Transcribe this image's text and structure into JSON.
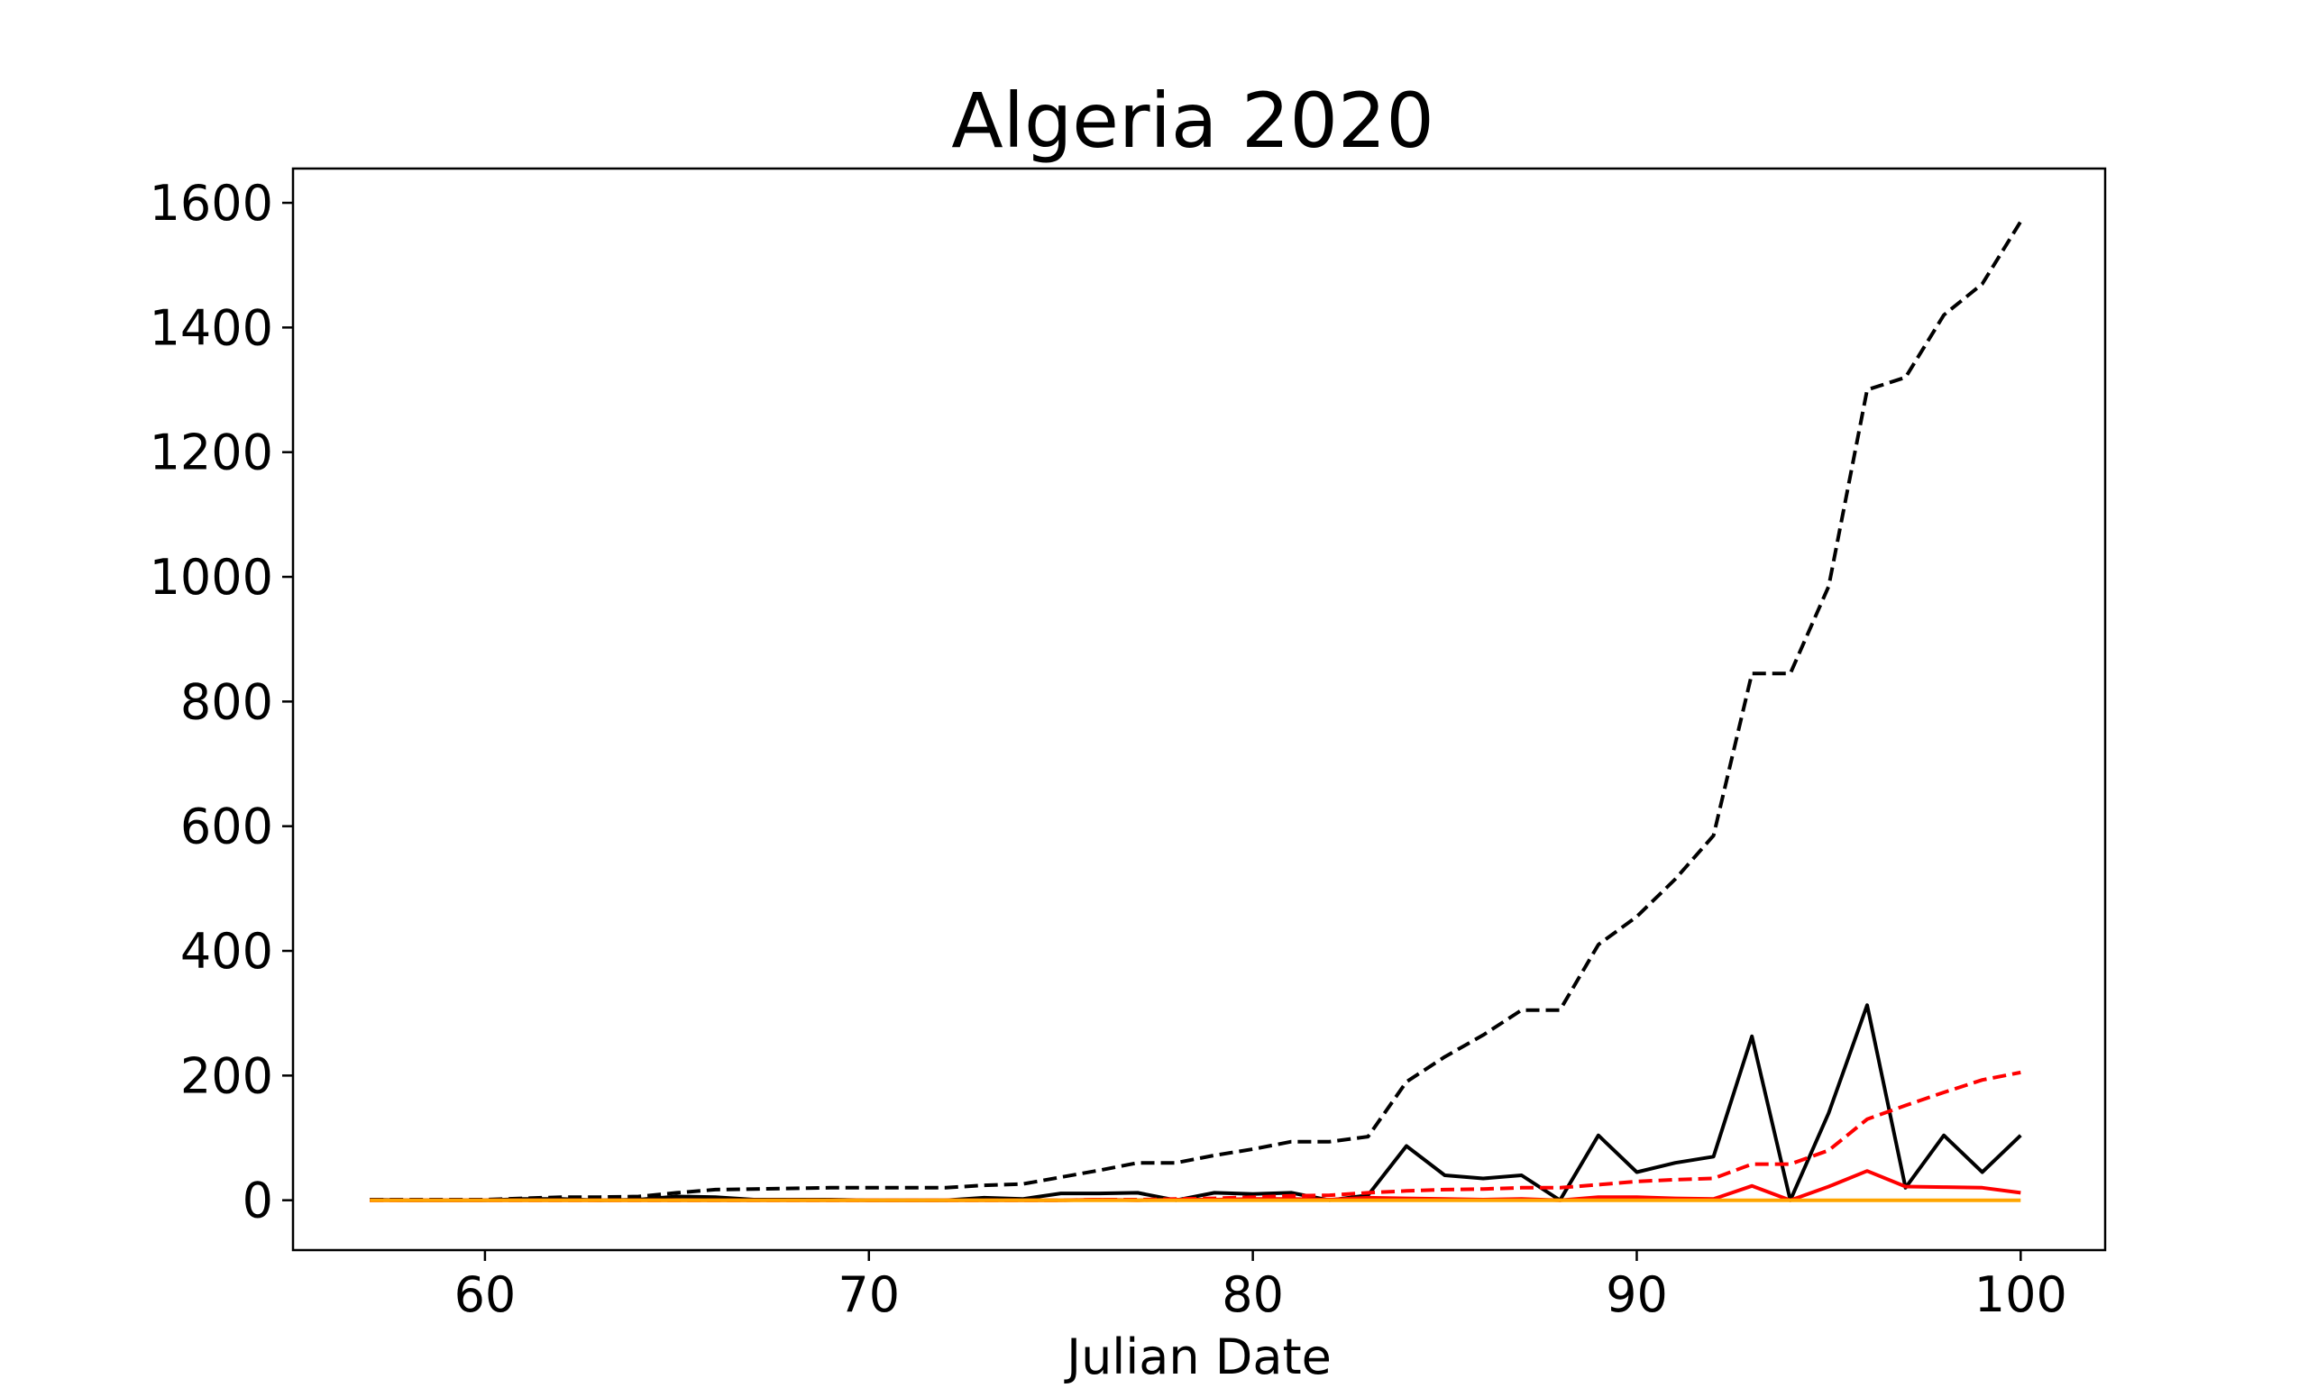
{
  "chart_data": {
    "type": "line",
    "title": "Algeria 2020",
    "xlabel": "Julian Date",
    "ylabel": "",
    "xlim": [
      55,
      102.2
    ],
    "ylim": [
      -80,
      1655
    ],
    "xticks": [
      60,
      70,
      80,
      90,
      100
    ],
    "yticks": [
      0,
      200,
      400,
      600,
      800,
      1000,
      1200,
      1400,
      1600
    ],
    "x": [
      57,
      58,
      59,
      60,
      61,
      62,
      63,
      64,
      65,
      66,
      67,
      68,
      69,
      70,
      71,
      72,
      73,
      74,
      75,
      76,
      77,
      78,
      79,
      80,
      81,
      82,
      83,
      84,
      85,
      86,
      87,
      88,
      89,
      90,
      91,
      92,
      93,
      94,
      95,
      96,
      97,
      98,
      99,
      100
    ],
    "series": [
      {
        "color": "#000000",
        "dash": "dashed",
        "values": [
          1,
          1,
          1,
          1,
          3,
          5,
          5,
          6,
          12,
          17,
          18,
          19,
          20,
          20,
          20,
          20,
          24,
          26,
          37,
          48,
          60,
          60,
          72,
          82,
          94,
          94,
          102,
          190,
          230,
          265,
          305,
          305,
          410,
          455,
          515,
          585,
          845,
          845,
          985,
          1300,
          1320,
          1420,
          1470,
          1570
        ]
      },
      {
        "color": "#000000",
        "dash": "solid",
        "values": [
          1,
          0,
          0,
          0,
          2,
          2,
          0,
          1,
          6,
          5,
          1,
          1,
          1,
          0,
          0,
          0,
          4,
          2,
          11,
          11,
          12,
          0,
          12,
          10,
          12,
          0,
          8,
          87,
          40,
          35,
          40,
          0,
          104,
          45,
          60,
          70,
          263,
          0,
          140,
          313,
          20,
          104,
          45,
          104
        ]
      },
      {
        "color": "#ff0000",
        "dash": "dashed",
        "values": [
          0,
          0,
          0,
          0,
          0,
          0,
          0,
          0,
          0,
          0,
          0,
          0,
          0,
          0,
          0,
          0,
          0,
          0,
          0,
          1,
          1,
          2,
          3,
          5,
          7,
          8,
          12,
          15,
          17,
          18,
          20,
          20,
          25,
          30,
          33,
          35,
          58,
          58,
          80,
          130,
          152,
          173,
          193,
          205
        ]
      },
      {
        "color": "#ff0000",
        "dash": "solid",
        "values": [
          0,
          0,
          0,
          0,
          0,
          0,
          0,
          0,
          0,
          0,
          0,
          0,
          0,
          0,
          0,
          0,
          0,
          0,
          0,
          1,
          0,
          1,
          1,
          2,
          2,
          1,
          4,
          3,
          2,
          1,
          2,
          0,
          5,
          5,
          3,
          2,
          23,
          0,
          22,
          47,
          22,
          21,
          20,
          12
        ]
      },
      {
        "color": "#ffa500",
        "dash": "solid",
        "values": [
          0,
          0,
          0,
          0,
          0,
          0,
          0,
          0,
          0,
          0,
          0,
          0,
          0,
          0,
          0,
          0,
          0,
          0,
          0,
          0,
          0,
          0,
          0,
          0,
          0,
          0,
          0,
          0,
          0,
          0,
          0,
          0,
          0,
          0,
          0,
          0,
          0,
          0,
          0,
          0,
          0,
          0,
          0,
          0
        ]
      }
    ],
    "grid": false,
    "legend": "none"
  }
}
